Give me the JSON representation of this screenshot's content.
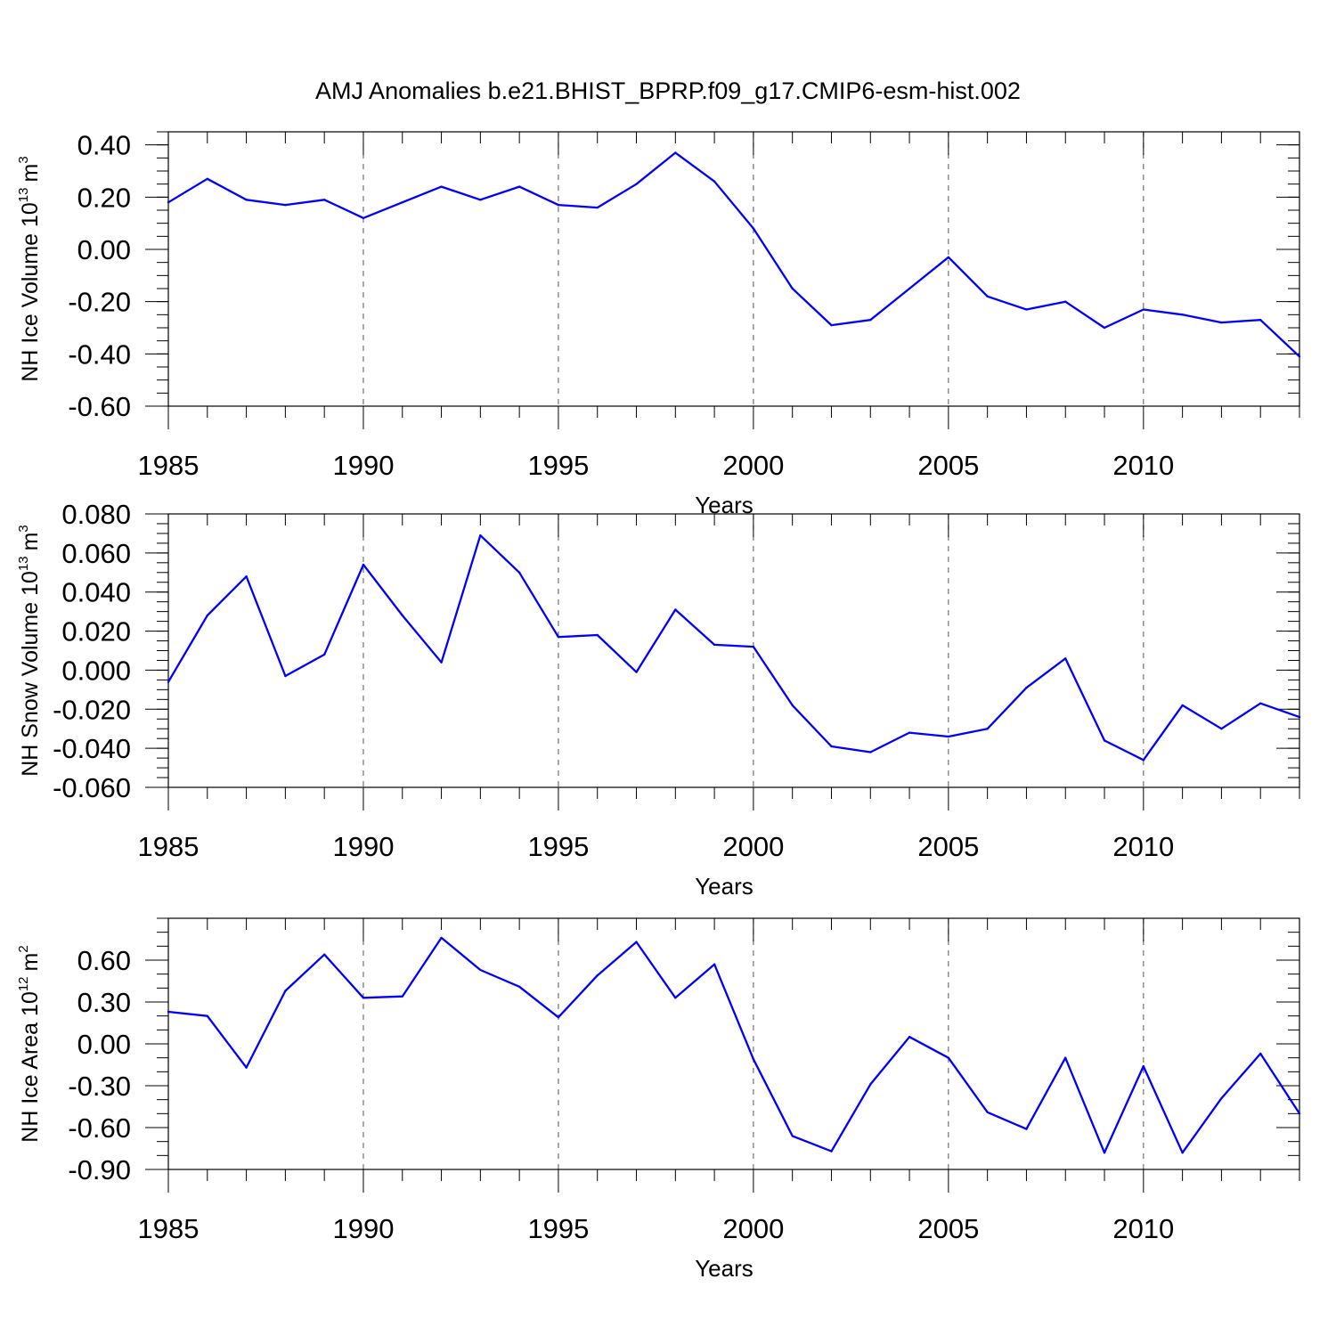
{
  "figure_title": "AMJ Anomalies b.e21.BHIST_BPRP.f09_g17.CMIP6-esm-hist.002",
  "colors": {
    "line": "#0000ff",
    "axis": "#000000",
    "grid": "#555555"
  },
  "chart_data": [
    {
      "type": "line",
      "title": "",
      "xlabel": "Years",
      "ylabel": {
        "prefix": "NH Ice Volume 10",
        "exponent": "13",
        "unit": "m",
        "unit_exponent": "3"
      },
      "xlim": [
        1985,
        2014
      ],
      "ylim": [
        -0.6,
        0.45
      ],
      "x_ticks": [
        1985,
        1990,
        1995,
        2000,
        2005,
        2010
      ],
      "x_tick_labels": [
        "1985",
        "1990",
        "1995",
        "2000",
        "2005",
        "2010"
      ],
      "y_ticks": [
        0.4,
        0.2,
        0.0,
        -0.2,
        -0.4,
        -0.6
      ],
      "y_tick_labels": [
        "0.40",
        "0.20",
        "0.00",
        "-0.20",
        "-0.40",
        "-0.60"
      ],
      "y_minor_step": 0.05,
      "grid": "dashed vertical at major x ticks",
      "series": [
        {
          "name": "NH Ice Volume anomaly",
          "x": [
            1985,
            1986,
            1987,
            1988,
            1989,
            1990,
            1991,
            1992,
            1993,
            1994,
            1995,
            1996,
            1997,
            1998,
            1999,
            2000,
            2001,
            2002,
            2003,
            2004,
            2005,
            2006,
            2007,
            2008,
            2009,
            2010,
            2011,
            2012,
            2013,
            2014
          ],
          "values": [
            0.18,
            0.27,
            0.19,
            0.17,
            0.19,
            0.12,
            0.18,
            0.24,
            0.19,
            0.24,
            0.17,
            0.16,
            0.25,
            0.37,
            0.26,
            0.08,
            -0.15,
            -0.29,
            -0.27,
            -0.15,
            -0.03,
            -0.18,
            -0.23,
            -0.2,
            -0.3,
            -0.23,
            -0.25,
            -0.28,
            -0.27,
            -0.41
          ]
        }
      ]
    },
    {
      "type": "line",
      "title": "",
      "xlabel": "Years",
      "ylabel": {
        "prefix": "NH Snow Volume 10",
        "exponent": "13",
        "unit": "m",
        "unit_exponent": "3"
      },
      "xlim": [
        1985,
        2014
      ],
      "ylim": [
        -0.06,
        0.08
      ],
      "x_ticks": [
        1985,
        1990,
        1995,
        2000,
        2005,
        2010
      ],
      "x_tick_labels": [
        "1985",
        "1990",
        "1995",
        "2000",
        "2005",
        "2010"
      ],
      "y_ticks": [
        0.08,
        0.06,
        0.04,
        0.02,
        0.0,
        -0.02,
        -0.04,
        -0.06
      ],
      "y_tick_labels": [
        "0.080",
        "0.060",
        "0.040",
        "0.020",
        "0.000",
        "-0.020",
        "-0.040",
        "-0.060"
      ],
      "y_minor_step": 0.005,
      "grid": "dashed vertical at major x ticks",
      "series": [
        {
          "name": "NH Snow Volume anomaly",
          "x": [
            1985,
            1986,
            1987,
            1988,
            1989,
            1990,
            1991,
            1992,
            1993,
            1994,
            1995,
            1996,
            1997,
            1998,
            1999,
            2000,
            2001,
            2002,
            2003,
            2004,
            2005,
            2006,
            2007,
            2008,
            2009,
            2010,
            2011,
            2012,
            2013,
            2014
          ],
          "values": [
            -0.006,
            0.028,
            0.048,
            -0.003,
            0.008,
            0.054,
            0.028,
            0.004,
            0.069,
            0.05,
            0.017,
            0.018,
            -0.001,
            0.031,
            0.013,
            0.012,
            -0.018,
            -0.039,
            -0.042,
            -0.032,
            -0.034,
            -0.03,
            -0.009,
            0.006,
            -0.036,
            -0.046,
            -0.018,
            -0.03,
            -0.017,
            -0.024
          ]
        }
      ]
    },
    {
      "type": "line",
      "title": "",
      "xlabel": "Years",
      "ylabel": {
        "prefix": "NH Ice Area 10",
        "exponent": "12",
        "unit": "m",
        "unit_exponent": "2"
      },
      "xlim": [
        1985,
        2014
      ],
      "ylim": [
        -0.9,
        0.9
      ],
      "x_ticks": [
        1985,
        1990,
        1995,
        2000,
        2005,
        2010
      ],
      "x_tick_labels": [
        "1985",
        "1990",
        "1995",
        "2000",
        "2005",
        "2010"
      ],
      "y_ticks": [
        0.6,
        0.3,
        0.0,
        -0.3,
        -0.6,
        -0.9
      ],
      "y_tick_labels": [
        "0.60",
        "0.30",
        "0.00",
        "-0.30",
        "-0.60",
        "-0.90"
      ],
      "y_minor_step": 0.1,
      "grid": "dashed vertical at major x ticks",
      "series": [
        {
          "name": "NH Ice Area anomaly",
          "x": [
            1985,
            1986,
            1987,
            1988,
            1989,
            1990,
            1991,
            1992,
            1993,
            1994,
            1995,
            1996,
            1997,
            1998,
            1999,
            2000,
            2001,
            2002,
            2003,
            2004,
            2005,
            2006,
            2007,
            2008,
            2009,
            2010,
            2011,
            2012,
            2013,
            2014
          ],
          "values": [
            0.23,
            0.2,
            -0.17,
            0.38,
            0.64,
            0.33,
            0.34,
            0.76,
            0.53,
            0.41,
            0.19,
            0.49,
            0.73,
            0.33,
            0.57,
            -0.11,
            -0.66,
            -0.77,
            -0.29,
            0.05,
            -0.1,
            -0.49,
            -0.61,
            -0.1,
            -0.78,
            -0.16,
            -0.78,
            -0.39,
            -0.07,
            -0.5
          ]
        }
      ]
    }
  ]
}
